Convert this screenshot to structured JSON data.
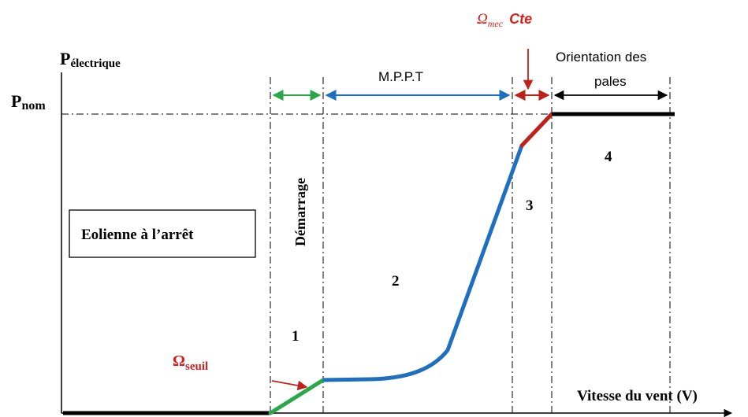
{
  "axes": {
    "y_label_main": "P",
    "y_label_sub": "électrique",
    "y_nominal_main": "P",
    "y_nominal_sub": "nom",
    "x_label": "Vitesse du vent (V)"
  },
  "annotations": {
    "omega_symbol": "Ω",
    "omega_mec_sub": "mec",
    "omega_mec_suffix": "Cte",
    "omega_seuil_sub": "seuil",
    "stopped_box": "Eolienne à l’arrêt",
    "startup": "Démarrage",
    "mppt": "M.P.P.T",
    "orientation_line1": "Orientation des",
    "orientation_line2": "pales"
  },
  "zones": [
    "1",
    "2",
    "3",
    "4"
  ],
  "colors": {
    "stopped": "#000000",
    "startup": "#2aa74a",
    "mppt": "#1f6fc1",
    "constant_speed": "#c0201a",
    "nominal": "#000000",
    "arrow_green": "#2aa74a",
    "arrow_blue": "#1f6fc1",
    "arrow_red": "#c0201a"
  }
}
